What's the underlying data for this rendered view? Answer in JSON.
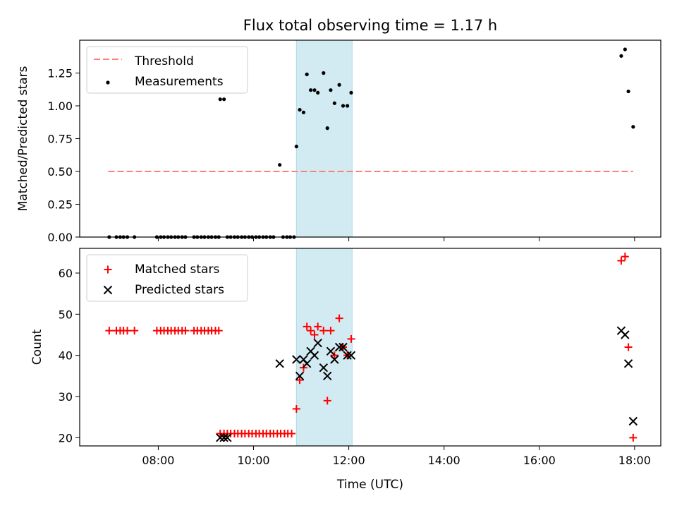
{
  "title": "Flux total observing time = 1.17 h",
  "colors": {
    "shade": "#add8e6",
    "threshold": "#ff7f7f",
    "measurement": "#000000",
    "matched": "#ff0000",
    "predicted": "#000000"
  },
  "chart_data": [
    {
      "type": "scatter",
      "title": "Flux total observing time = 1.17 h",
      "ylabel": "Matched/Predicted stars",
      "xlabel": "",
      "x_unit": "hours (UTC)",
      "xlim": [
        6.35,
        18.55
      ],
      "ylim": [
        0,
        1.5
      ],
      "yticks": [
        "0.00",
        "0.25",
        "0.50",
        "0.75",
        "1.00",
        "1.25"
      ],
      "ytick_values": [
        0,
        0.25,
        0.5,
        0.75,
        1.0,
        1.25
      ],
      "shaded_interval": [
        10.9,
        12.07
      ],
      "legend": {
        "placement": "top-left",
        "entries": [
          "Threshold",
          "Measurements"
        ]
      },
      "series": [
        {
          "name": "Threshold",
          "style": "dashed-line",
          "x": [
            6.95,
            17.97
          ],
          "y": [
            0.5,
            0.5
          ]
        },
        {
          "name": "Measurements",
          "style": "dot",
          "x": [
            6.97,
            7.12,
            7.2,
            7.27,
            7.35,
            7.5,
            7.97,
            8.05,
            8.12,
            8.2,
            8.27,
            8.35,
            8.42,
            8.5,
            8.57,
            8.75,
            8.82,
            8.9,
            8.97,
            9.05,
            9.12,
            9.2,
            9.27,
            9.3,
            9.38,
            9.45,
            9.52,
            9.6,
            9.67,
            9.75,
            9.82,
            9.9,
            9.97,
            10.05,
            10.12,
            10.2,
            10.27,
            10.35,
            10.42,
            10.55,
            10.62,
            10.7,
            10.77,
            10.85,
            10.9,
            10.97,
            11.05,
            11.12,
            11.2,
            11.28,
            11.35,
            11.47,
            11.55,
            11.62,
            11.7,
            11.8,
            11.88,
            11.97,
            12.05,
            17.72,
            17.8,
            17.87,
            17.97
          ],
          "y": [
            0,
            0,
            0,
            0,
            0,
            0,
            0,
            0,
            0,
            0,
            0,
            0,
            0,
            0,
            0,
            0,
            0,
            0,
            0,
            0,
            0,
            0,
            0,
            1.05,
            1.05,
            0,
            0,
            0,
            0,
            0,
            0,
            0,
            0,
            0,
            0,
            0,
            0,
            0,
            0,
            0.55,
            0,
            0,
            0,
            0,
            0.69,
            0.97,
            0.95,
            1.24,
            1.12,
            1.12,
            1.1,
            1.25,
            0.83,
            1.12,
            1.02,
            1.16,
            1.0,
            1.0,
            1.1,
            1.38,
            1.43,
            1.11,
            0.84
          ]
        }
      ]
    },
    {
      "type": "scatter",
      "xlabel": "Time (UTC)",
      "ylabel": "Count",
      "x_unit": "hours (UTC)",
      "xlim": [
        6.35,
        18.55
      ],
      "ylim": [
        18,
        66
      ],
      "xticks": [
        "08:00",
        "10:00",
        "12:00",
        "14:00",
        "16:00",
        "18:00"
      ],
      "xtick_values": [
        8,
        10,
        12,
        14,
        16,
        18
      ],
      "yticks": [
        "20",
        "30",
        "40",
        "50",
        "60"
      ],
      "ytick_values": [
        20,
        30,
        40,
        50,
        60
      ],
      "shaded_interval": [
        10.9,
        12.07
      ],
      "legend": {
        "placement": "top-left",
        "entries": [
          "Matched stars",
          "Predicted stars"
        ]
      },
      "series": [
        {
          "name": "Matched stars",
          "style": "plus",
          "x": [
            6.97,
            7.12,
            7.2,
            7.27,
            7.35,
            7.5,
            7.97,
            8.05,
            8.12,
            8.2,
            8.27,
            8.35,
            8.42,
            8.5,
            8.57,
            8.75,
            8.82,
            8.9,
            8.97,
            9.05,
            9.12,
            9.2,
            9.27,
            9.3,
            9.38,
            9.45,
            9.52,
            9.6,
            9.67,
            9.75,
            9.82,
            9.9,
            9.97,
            10.05,
            10.12,
            10.2,
            10.27,
            10.35,
            10.42,
            10.5,
            10.57,
            10.65,
            10.72,
            10.8,
            10.9,
            10.97,
            11.05,
            11.12,
            11.2,
            11.28,
            11.35,
            11.47,
            11.55,
            11.62,
            11.7,
            11.8,
            11.88,
            11.97,
            12.05,
            17.72,
            17.8,
            17.87,
            17.97
          ],
          "y": [
            46,
            46,
            46,
            46,
            46,
            46,
            46,
            46,
            46,
            46,
            46,
            46,
            46,
            46,
            46,
            46,
            46,
            46,
            46,
            46,
            46,
            46,
            46,
            21,
            21,
            21,
            21,
            21,
            21,
            21,
            21,
            21,
            21,
            21,
            21,
            21,
            21,
            21,
            21,
            21,
            21,
            21,
            21,
            21,
            27,
            34,
            37,
            47,
            46,
            45,
            47,
            46,
            29,
            46,
            40,
            49,
            42,
            40,
            44,
            63,
            64,
            42,
            20
          ]
        },
        {
          "name": "Predicted stars",
          "style": "x",
          "x": [
            9.3,
            9.38,
            9.45,
            10.55,
            10.9,
            10.97,
            11.05,
            11.12,
            11.2,
            11.28,
            11.35,
            11.47,
            11.55,
            11.62,
            11.7,
            11.8,
            11.88,
            11.97,
            12.05,
            17.72,
            17.8,
            17.87,
            17.97
          ],
          "y": [
            20,
            20,
            20,
            38,
            39,
            35,
            39,
            38,
            41,
            40,
            43,
            37,
            35,
            41,
            39,
            42,
            42,
            40,
            40,
            46,
            45,
            38,
            24
          ]
        }
      ]
    }
  ]
}
